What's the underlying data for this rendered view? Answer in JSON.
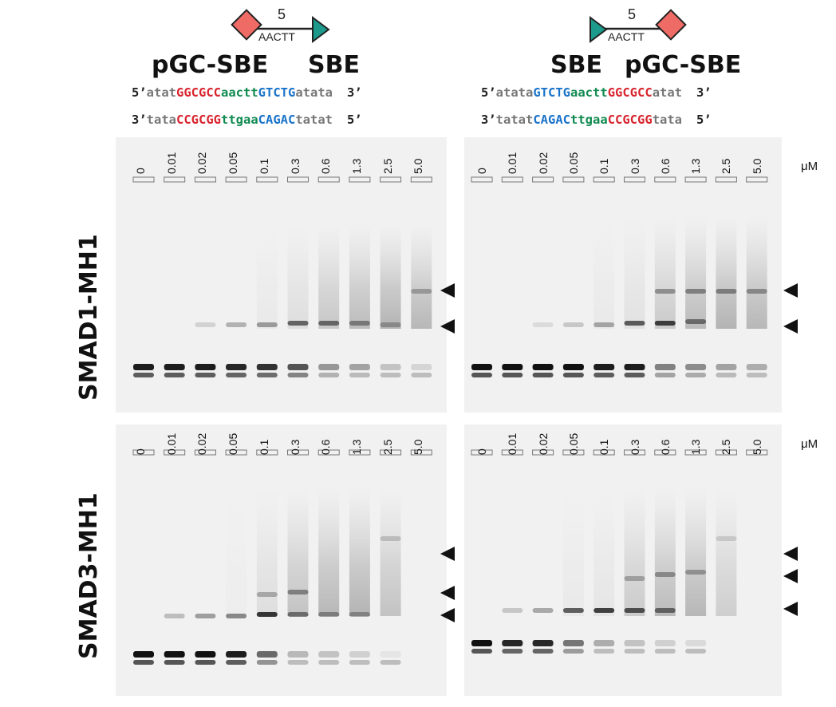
{
  "left_construct": {
    "schematic": {
      "spacer_length": "5",
      "spacer_seq": "AACTT"
    },
    "label_pgc": "pGC-SBE",
    "label_sbe": "SBE",
    "top_strand": {
      "p5": "5’",
      "flank1": "atat",
      "gc": "GGCGCC",
      "spacer": "aactt",
      "sbe": "GTCTG",
      "flank2": "atata",
      "p3": "3’"
    },
    "bottom_strand": {
      "p3": "3’",
      "flank1": "tata",
      "gc": "CCGCGG",
      "spacer": "ttgaa",
      "sbe": "CAGAC",
      "flank2": "tatat",
      "p5": "5’"
    }
  },
  "right_construct": {
    "schematic": {
      "spacer_length": "5",
      "spacer_seq": "AACTT"
    },
    "label_sbe": "SBE",
    "label_pgc": "pGC-SBE",
    "top_strand": {
      "p5": "5’",
      "flank1": "atata",
      "sbe": "GTCTG",
      "spacer": "aactt",
      "gc": "GGCGCC",
      "flank2": "atat",
      "p3": "3’"
    },
    "bottom_strand": {
      "p3": "3’",
      "flank1": "tatat",
      "sbe": "CAGAC",
      "spacer": "ttgaa",
      "gc": "CCGCGG",
      "flank2": "tata",
      "p5": "5’"
    }
  },
  "proteins": [
    "SMAD1-MH1",
    "SMAD3-MH1"
  ],
  "concentrations": [
    "0",
    "0.01",
    "0.02",
    "0.05",
    "0.1",
    "0.3",
    "0.6",
    "1.3",
    "2.5",
    "5.0"
  ],
  "unit": "μM",
  "colors": {
    "gc": "#d8252f",
    "spacer": "#108a50",
    "sbe": "#1a73c9",
    "flank": "#777777",
    "diamond": "#ee6b66",
    "triangle": "#1c9a8c"
  }
}
